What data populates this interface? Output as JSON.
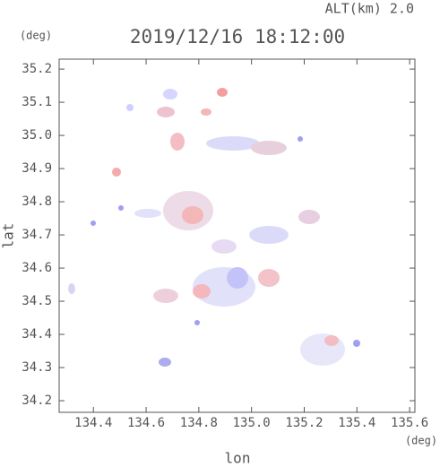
{
  "chart_data": {
    "type": "map",
    "title": "2019/12/16 18:12:00",
    "subtitle": "ALT(km) 2.0",
    "x_label": "lon",
    "y_label": "lat",
    "x_unit": "(deg)",
    "y_unit": "(deg)",
    "xlim": [
      134.27,
      135.62
    ],
    "ylim": [
      34.165,
      35.23
    ],
    "xticks": [
      134.4,
      134.6,
      134.8,
      {
        "value": 135.0,
        "label": "135.0"
      },
      135.2,
      135.4,
      135.6
    ],
    "yticks": [
      34.2,
      34.3,
      34.4,
      34.5,
      34.6,
      34.7,
      34.8,
      34.9,
      {
        "value": 35.0,
        "label": "35.0"
      },
      35.1,
      35.2
    ]
  }
}
